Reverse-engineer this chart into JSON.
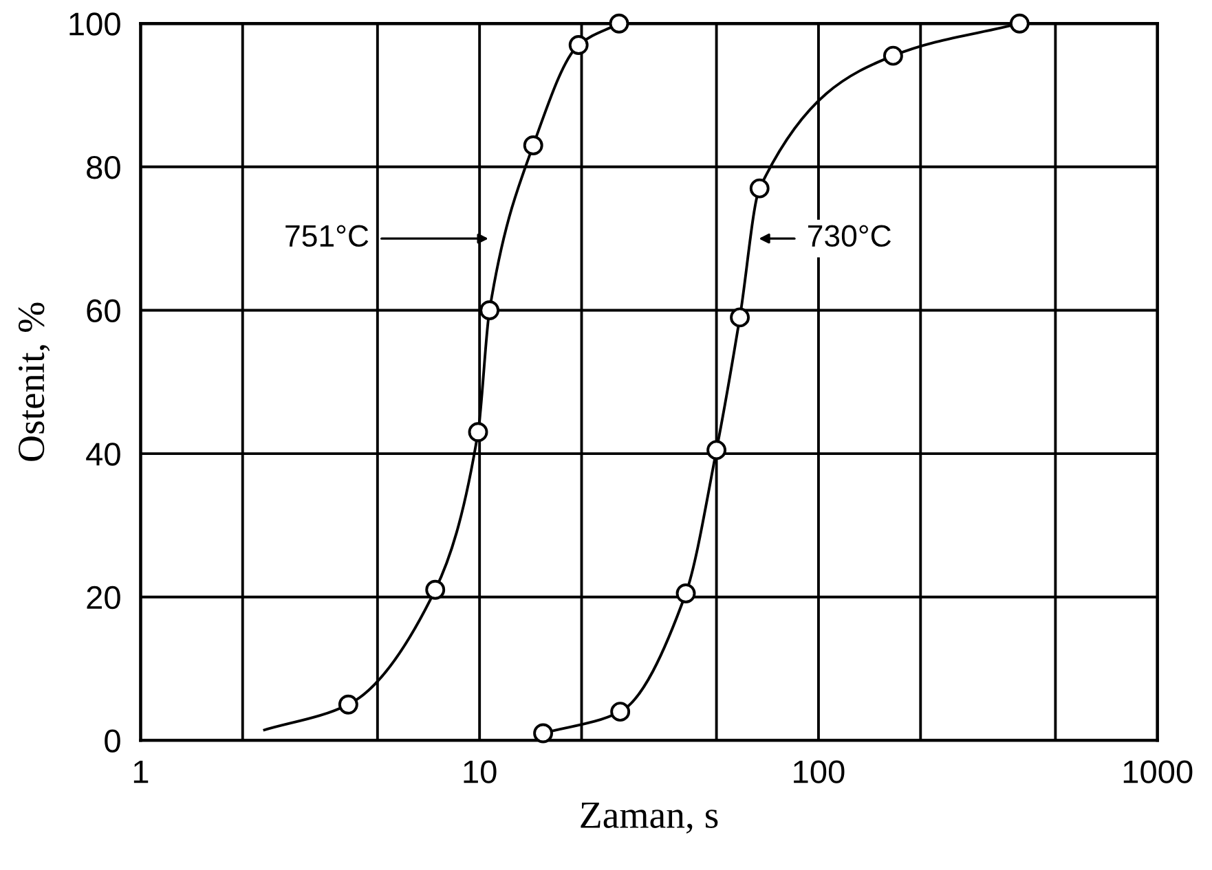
{
  "chart_data": {
    "type": "line",
    "xlabel": "Zaman, s",
    "ylabel": "Ostenit, %",
    "log": "x",
    "xlim": [
      1,
      1000
    ],
    "xticks": [
      1,
      {
        "value": 2,
        "label": null
      },
      {
        "value": 5,
        "label": null
      },
      10,
      {
        "value": 20,
        "label": null
      },
      {
        "value": 50,
        "label": null
      },
      100,
      {
        "value": 200,
        "label": null
      },
      {
        "value": 500,
        "label": null
      },
      1000
    ],
    "ylim": [
      0,
      100
    ],
    "yticks": [
      0,
      20,
      40,
      60,
      80,
      100
    ],
    "grid": true,
    "series": [
      {
        "color": "#000000",
        "marker": "none",
        "x": [
          2.3,
          4.1,
          7.4,
          9.9,
          10.7,
          14.4,
          19.6,
          25.8
        ],
        "values": [
          1.4,
          5,
          21,
          43,
          60,
          83,
          97,
          100
        ]
      },
      {
        "type": "scatter",
        "color": "#000000",
        "marker": "circle",
        "x": [
          4.1,
          7.4,
          9.9,
          10.7,
          14.4,
          19.6,
          25.8
        ],
        "values": [
          5,
          21,
          43,
          60,
          83,
          97,
          100
        ]
      },
      {
        "color": "#000000",
        "marker": "none",
        "x": [
          15.4,
          26,
          40.6,
          50,
          58.6,
          67,
          166,
          392
        ],
        "values": [
          1,
          4,
          20.5,
          40.5,
          59,
          77,
          95.5,
          100
        ]
      },
      {
        "type": "scatter",
        "color": "#000000",
        "marker": "circle",
        "x": [
          15.4,
          26,
          40.6,
          50,
          58.6,
          67,
          166,
          392
        ],
        "values": [
          1,
          4,
          20.5,
          40.5,
          59,
          77,
          95.5,
          100
        ]
      }
    ],
    "annotations": [
      "751°C",
      "730°C"
    ]
  }
}
